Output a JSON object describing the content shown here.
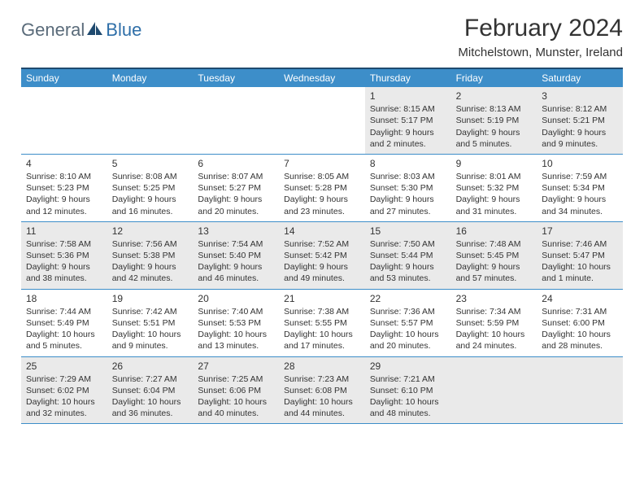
{
  "logo": {
    "text1": "General",
    "text2": "Blue",
    "icon_color": "#1f4a6f",
    "text1_color": "#5a6b7a",
    "text2_color": "#2f6fa8"
  },
  "title": "February 2024",
  "location": "Mitchelstown, Munster, Ireland",
  "header_bg": "#3d8ec9",
  "header_border": "#1f4a6f",
  "shaded_bg": "#eaeaea",
  "day_names": [
    "Sunday",
    "Monday",
    "Tuesday",
    "Wednesday",
    "Thursday",
    "Friday",
    "Saturday"
  ],
  "weeks": [
    [
      {
        "n": "",
        "empty": true
      },
      {
        "n": "",
        "empty": true
      },
      {
        "n": "",
        "empty": true
      },
      {
        "n": "",
        "empty": true
      },
      {
        "n": "1",
        "sunrise": "8:15 AM",
        "sunset": "5:17 PM",
        "daylight": "9 hours and 2 minutes."
      },
      {
        "n": "2",
        "sunrise": "8:13 AM",
        "sunset": "5:19 PM",
        "daylight": "9 hours and 5 minutes."
      },
      {
        "n": "3",
        "sunrise": "8:12 AM",
        "sunset": "5:21 PM",
        "daylight": "9 hours and 9 minutes."
      }
    ],
    [
      {
        "n": "4",
        "sunrise": "8:10 AM",
        "sunset": "5:23 PM",
        "daylight": "9 hours and 12 minutes."
      },
      {
        "n": "5",
        "sunrise": "8:08 AM",
        "sunset": "5:25 PM",
        "daylight": "9 hours and 16 minutes."
      },
      {
        "n": "6",
        "sunrise": "8:07 AM",
        "sunset": "5:27 PM",
        "daylight": "9 hours and 20 minutes."
      },
      {
        "n": "7",
        "sunrise": "8:05 AM",
        "sunset": "5:28 PM",
        "daylight": "9 hours and 23 minutes."
      },
      {
        "n": "8",
        "sunrise": "8:03 AM",
        "sunset": "5:30 PM",
        "daylight": "9 hours and 27 minutes."
      },
      {
        "n": "9",
        "sunrise": "8:01 AM",
        "sunset": "5:32 PM",
        "daylight": "9 hours and 31 minutes."
      },
      {
        "n": "10",
        "sunrise": "7:59 AM",
        "sunset": "5:34 PM",
        "daylight": "9 hours and 34 minutes."
      }
    ],
    [
      {
        "n": "11",
        "sunrise": "7:58 AM",
        "sunset": "5:36 PM",
        "daylight": "9 hours and 38 minutes."
      },
      {
        "n": "12",
        "sunrise": "7:56 AM",
        "sunset": "5:38 PM",
        "daylight": "9 hours and 42 minutes."
      },
      {
        "n": "13",
        "sunrise": "7:54 AM",
        "sunset": "5:40 PM",
        "daylight": "9 hours and 46 minutes."
      },
      {
        "n": "14",
        "sunrise": "7:52 AM",
        "sunset": "5:42 PM",
        "daylight": "9 hours and 49 minutes."
      },
      {
        "n": "15",
        "sunrise": "7:50 AM",
        "sunset": "5:44 PM",
        "daylight": "9 hours and 53 minutes."
      },
      {
        "n": "16",
        "sunrise": "7:48 AM",
        "sunset": "5:45 PM",
        "daylight": "9 hours and 57 minutes."
      },
      {
        "n": "17",
        "sunrise": "7:46 AM",
        "sunset": "5:47 PM",
        "daylight": "10 hours and 1 minute."
      }
    ],
    [
      {
        "n": "18",
        "sunrise": "7:44 AM",
        "sunset": "5:49 PM",
        "daylight": "10 hours and 5 minutes."
      },
      {
        "n": "19",
        "sunrise": "7:42 AM",
        "sunset": "5:51 PM",
        "daylight": "10 hours and 9 minutes."
      },
      {
        "n": "20",
        "sunrise": "7:40 AM",
        "sunset": "5:53 PM",
        "daylight": "10 hours and 13 minutes."
      },
      {
        "n": "21",
        "sunrise": "7:38 AM",
        "sunset": "5:55 PM",
        "daylight": "10 hours and 17 minutes."
      },
      {
        "n": "22",
        "sunrise": "7:36 AM",
        "sunset": "5:57 PM",
        "daylight": "10 hours and 20 minutes."
      },
      {
        "n": "23",
        "sunrise": "7:34 AM",
        "sunset": "5:59 PM",
        "daylight": "10 hours and 24 minutes."
      },
      {
        "n": "24",
        "sunrise": "7:31 AM",
        "sunset": "6:00 PM",
        "daylight": "10 hours and 28 minutes."
      }
    ],
    [
      {
        "n": "25",
        "sunrise": "7:29 AM",
        "sunset": "6:02 PM",
        "daylight": "10 hours and 32 minutes."
      },
      {
        "n": "26",
        "sunrise": "7:27 AM",
        "sunset": "6:04 PM",
        "daylight": "10 hours and 36 minutes."
      },
      {
        "n": "27",
        "sunrise": "7:25 AM",
        "sunset": "6:06 PM",
        "daylight": "10 hours and 40 minutes."
      },
      {
        "n": "28",
        "sunrise": "7:23 AM",
        "sunset": "6:08 PM",
        "daylight": "10 hours and 44 minutes."
      },
      {
        "n": "29",
        "sunrise": "7:21 AM",
        "sunset": "6:10 PM",
        "daylight": "10 hours and 48 minutes."
      },
      {
        "n": "",
        "empty": true
      },
      {
        "n": "",
        "empty": true
      }
    ]
  ]
}
